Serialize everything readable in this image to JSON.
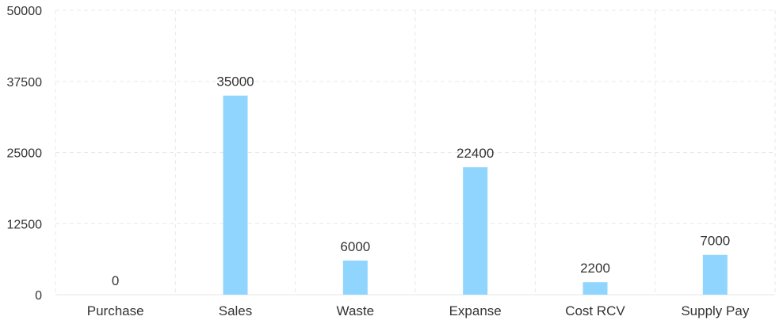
{
  "chart_data": {
    "type": "bar",
    "title": "",
    "xlabel": "",
    "ylabel": "",
    "categories": [
      "Purchase",
      "Sales",
      "Waste",
      "Expanse",
      "Cost RCV",
      "Supply Pay"
    ],
    "values": [
      0,
      35000,
      6000,
      22400,
      2200,
      7000
    ],
    "ylim": [
      0,
      50000
    ],
    "yticks": [
      "0",
      "12500",
      "25000",
      "37500",
      "50000"
    ],
    "grid": true,
    "data_labels": true,
    "bar_color": "#90d5fe"
  }
}
